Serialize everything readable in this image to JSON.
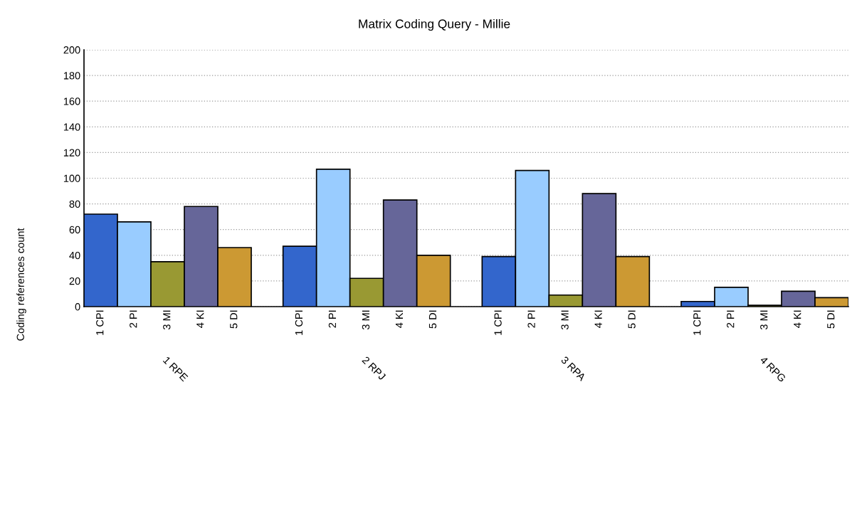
{
  "chart_data": {
    "type": "bar",
    "title": "Matrix Coding Query - Millie",
    "ylabel": "Coding references count",
    "categories": [
      "1 RPE",
      "2 RPJ",
      "3 RPA",
      "4 RPG"
    ],
    "series": [
      {
        "name": "1 CPI",
        "color": "#3366cc",
        "values": [
          72,
          47,
          39,
          4
        ]
      },
      {
        "name": "2 PI",
        "color": "#99ccff",
        "values": [
          66,
          107,
          106,
          15
        ]
      },
      {
        "name": "3 MI",
        "color": "#999933",
        "values": [
          35,
          22,
          9,
          1
        ]
      },
      {
        "name": "4 KI",
        "color": "#666699",
        "values": [
          78,
          83,
          88,
          12
        ]
      },
      {
        "name": "5 DI",
        "color": "#cc9933",
        "values": [
          46,
          40,
          39,
          7
        ]
      }
    ],
    "ylim": [
      0,
      200
    ],
    "yticks": [
      0,
      20,
      40,
      60,
      80,
      100,
      120,
      140,
      160,
      180,
      200
    ],
    "grid": "y",
    "legend": false
  }
}
